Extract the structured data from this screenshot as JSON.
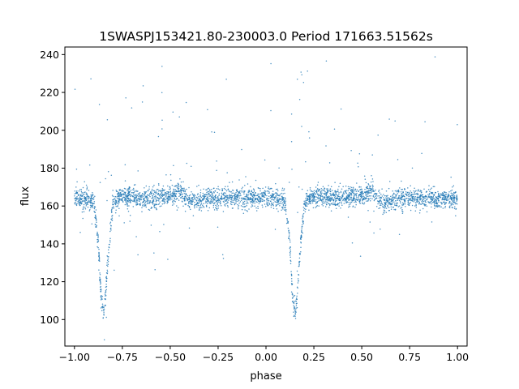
{
  "chart_data": {
    "type": "scatter",
    "title": "1SWASPJ153421.80-230003.0 Period 171663.51562s",
    "xlabel": "phase",
    "ylabel": "flux",
    "xlim": [
      -1.05,
      1.05
    ],
    "ylim": [
      86,
      244
    ],
    "xticks": [
      -1.0,
      -0.75,
      -0.5,
      -0.25,
      0.0,
      0.25,
      0.5,
      0.75,
      1.0
    ],
    "xtick_labels": [
      "−1.00",
      "−0.75",
      "−0.50",
      "−0.25",
      "0.00",
      "0.25",
      "0.50",
      "0.75",
      "1.00"
    ],
    "yticks": [
      100,
      120,
      140,
      160,
      180,
      200,
      220,
      240
    ],
    "ytick_labels": [
      "100",
      "120",
      "140",
      "160",
      "180",
      "200",
      "220",
      "240"
    ],
    "grid": false,
    "marker_color": "#1f77b4",
    "light_curve": {
      "phase": [
        -1.0,
        -0.95,
        -0.9,
        -0.875,
        -0.86,
        -0.845,
        -0.83,
        -0.8,
        -0.75,
        -0.7,
        -0.6,
        -0.5,
        -0.45,
        -0.4,
        -0.3,
        -0.2,
        -0.1,
        0.0,
        0.05,
        0.1,
        0.125,
        0.14,
        0.155,
        0.17,
        0.2,
        0.25,
        0.3,
        0.4,
        0.5,
        0.55,
        0.6,
        0.7,
        0.8,
        0.9,
        1.0
      ],
      "flux": [
        164,
        164,
        163,
        140,
        110,
        103,
        125,
        162,
        165,
        165,
        164,
        166,
        168,
        162,
        164,
        164,
        164,
        165,
        164,
        163,
        140,
        110,
        103,
        125,
        162,
        165,
        165,
        164,
        166,
        168,
        162,
        164,
        164,
        164,
        164
      ]
    }
  }
}
